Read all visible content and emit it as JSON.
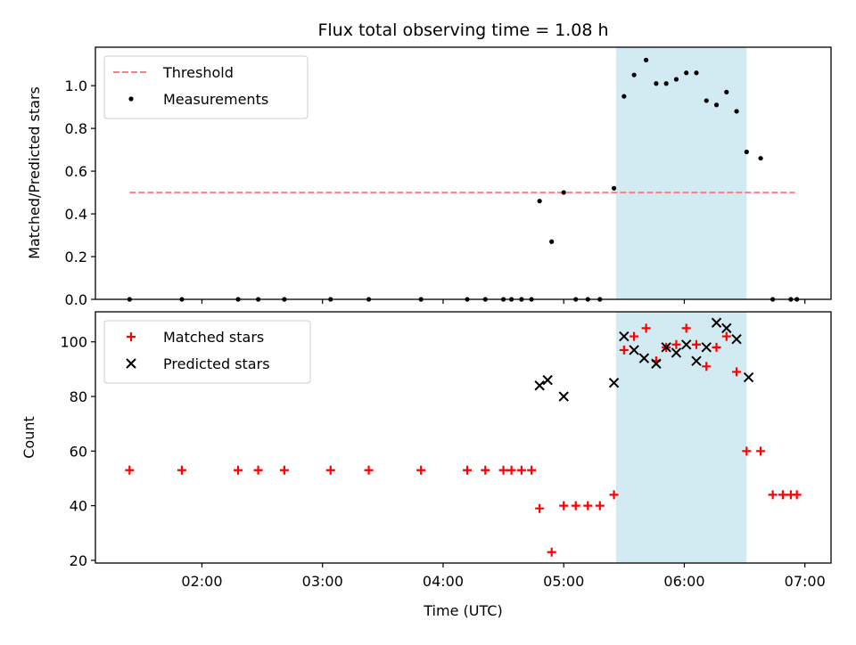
{
  "chart_data": {
    "title": "Flux total observing time = 1.08 h",
    "xlabel": "Time (UTC)",
    "x_ticks": [
      "02:00",
      "03:00",
      "04:00",
      "05:00",
      "06:00",
      "07:00"
    ],
    "x_range": [
      "01:07",
      "07:13"
    ],
    "shaded_interval": [
      "05:26",
      "06:31"
    ],
    "colors": {
      "threshold": "#ff7f7f",
      "shade": "#add8e6",
      "matched": "#ff0000",
      "predicted": "#000000",
      "measurements": "#000000"
    },
    "panels": [
      {
        "type": "scatter",
        "ylabel": "Matched/Predicted stars",
        "ylim": [
          0,
          1.18
        ],
        "y_ticks": [
          "0.0",
          "0.2",
          "0.4",
          "0.6",
          "0.8",
          "1.0"
        ],
        "legend": "top-left",
        "threshold": {
          "name": "Threshold",
          "value": 0.5,
          "x": [
            "01:24",
            "06:55"
          ]
        },
        "series": [
          {
            "name": "Measurements",
            "x": [
              "01:24",
              "01:50",
              "02:18",
              "02:28",
              "02:41",
              "03:04",
              "03:23",
              "03:49",
              "04:12",
              "04:21",
              "04:30",
              "04:34",
              "04:39",
              "04:44",
              "04:48",
              "04:54",
              "05:00",
              "05:06",
              "05:12",
              "05:18",
              "05:25",
              "05:30",
              "05:35",
              "05:41",
              "05:46",
              "05:51",
              "05:56",
              "06:01",
              "06:06",
              "06:11",
              "06:16",
              "06:21",
              "06:26",
              "06:31",
              "06:38",
              "06:44",
              "06:53",
              "06:56"
            ],
            "y": [
              0,
              0,
              0,
              0,
              0,
              0,
              0,
              0,
              0,
              0,
              0,
              0,
              0,
              0,
              0.46,
              0.27,
              0.5,
              0,
              0,
              0,
              0.52,
              0.95,
              1.05,
              1.12,
              1.01,
              1.01,
              1.03,
              1.06,
              1.06,
              0.93,
              0.91,
              0.97,
              0.88,
              0.69,
              0.66,
              0,
              0,
              0
            ]
          }
        ]
      },
      {
        "type": "scatter",
        "ylabel": "Count",
        "ylim": [
          19,
          111
        ],
        "y_ticks": [
          "20",
          "40",
          "60",
          "80",
          "100"
        ],
        "legend": "top-left",
        "series": [
          {
            "name": "Matched stars",
            "x": [
              "01:24",
              "01:50",
              "02:18",
              "02:28",
              "02:41",
              "03:04",
              "03:23",
              "03:49",
              "04:12",
              "04:21",
              "04:30",
              "04:34",
              "04:39",
              "04:44",
              "04:48",
              "04:54",
              "05:00",
              "05:06",
              "05:12",
              "05:18",
              "05:25",
              "05:30",
              "05:35",
              "05:41",
              "05:46",
              "05:51",
              "05:56",
              "06:01",
              "06:06",
              "06:11",
              "06:16",
              "06:21",
              "06:26",
              "06:31",
              "06:38",
              "06:44",
              "06:49",
              "06:53",
              "06:56"
            ],
            "y": [
              53,
              53,
              53,
              53,
              53,
              53,
              53,
              53,
              53,
              53,
              53,
              53,
              53,
              53,
              39,
              23,
              40,
              40,
              40,
              40,
              44,
              97,
              102,
              105,
              93,
              98,
              99,
              105,
              99,
              91,
              98,
              102,
              89,
              60,
              60,
              44,
              44,
              44,
              44
            ]
          },
          {
            "name": "Predicted stars",
            "x": [
              "04:48",
              "04:52",
              "05:00",
              "05:25",
              "05:30",
              "05:35",
              "05:40",
              "05:46",
              "05:51",
              "05:56",
              "06:01",
              "06:06",
              "06:11",
              "06:16",
              "06:21",
              "06:26",
              "06:32"
            ],
            "y": [
              84,
              86,
              80,
              85,
              102,
              97,
              94,
              92,
              98,
              96,
              99,
              93,
              98,
              107,
              105,
              101,
              87
            ]
          }
        ]
      }
    ]
  }
}
